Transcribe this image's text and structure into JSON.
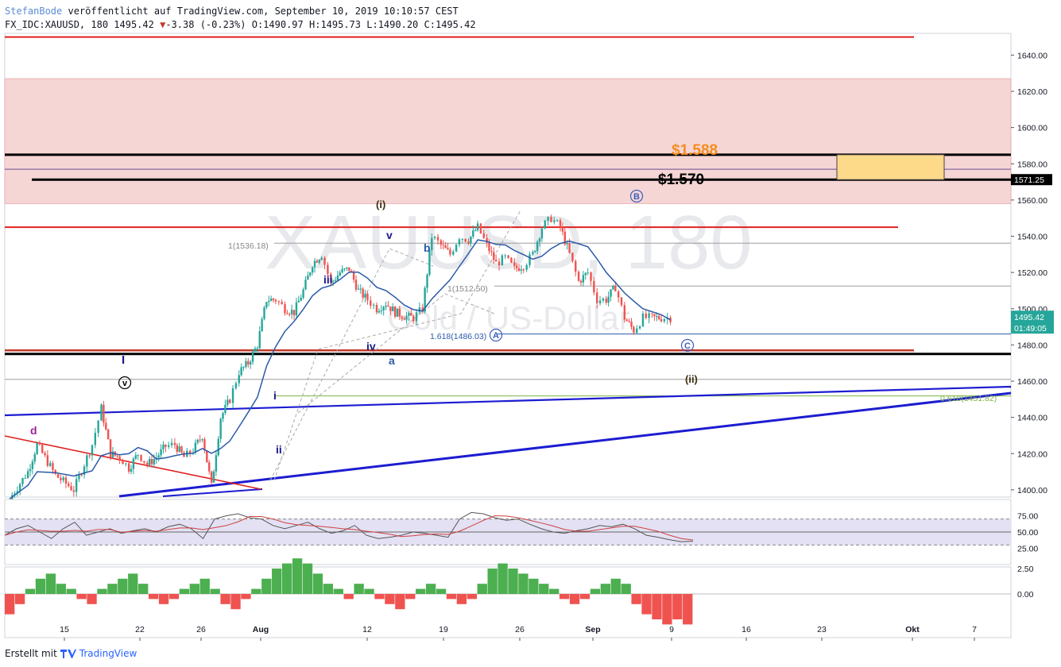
{
  "header": {
    "author": "StefanBode",
    "published": "veröffentlicht auf TradingView.com, September 10, 2019 10:10:57 CEST",
    "symbol_line": "FX_IDC:XAUUSD, 180",
    "last": "1495.42",
    "change": "-3.38",
    "change_pct": "(-0.23%)",
    "o_label": "O:",
    "o": "1490.97",
    "h_label": "H:",
    "h": "1495.73",
    "l_label": "L:",
    "l": "1490.20",
    "c_label": "C:",
    "c": "1495.42"
  },
  "footer": {
    "created": "Erstellt mit",
    "brand": "TradingView"
  },
  "watermark": {
    "symbol": "XAUUSD, 180",
    "name": "Gold / US-Dollar"
  },
  "chart_data": [
    {
      "type": "candlestick",
      "title": "FX_IDC:XAUUSD, 180",
      "y_axis": {
        "ticks": [
          1400,
          1420,
          1440,
          1460,
          1480,
          1500,
          1520,
          1540,
          1560,
          1580,
          1600,
          1620,
          1640
        ],
        "range": [
          1396,
          1652
        ],
        "position": "right"
      },
      "x_axis": {
        "ticks": [
          "15",
          "22",
          "26",
          "Aug",
          "12",
          "19",
          "26",
          "Sep",
          "9",
          "16",
          "23",
          "Okt",
          "7"
        ]
      },
      "price_path": {
        "x_day_index": [
          0,
          2,
          3,
          5,
          7,
          9,
          10,
          11,
          12,
          13,
          14,
          15,
          16,
          17,
          18,
          19,
          20,
          21,
          22,
          23,
          24,
          25,
          26,
          27,
          28,
          29,
          30,
          31,
          32,
          33,
          34,
          35,
          36,
          37,
          38,
          39,
          40,
          41,
          42,
          43,
          44,
          45,
          46,
          47,
          48,
          49,
          50,
          51,
          52,
          53,
          54,
          55,
          56,
          57,
          58,
          59,
          60,
          61,
          62,
          63,
          64,
          65,
          66,
          67,
          68,
          69,
          70,
          71,
          72
        ],
        "close": [
          1395,
          1410,
          1425,
          1408,
          1400,
          1425,
          1445,
          1420,
          1418,
          1412,
          1420,
          1414,
          1418,
          1424,
          1425,
          1418,
          1422,
          1430,
          1402,
          1440,
          1450,
          1465,
          1470,
          1480,
          1505,
          1505,
          1500,
          1498,
          1510,
          1525,
          1530,
          1514,
          1520,
          1522,
          1510,
          1505,
          1500,
          1503,
          1498,
          1496,
          1495,
          1500,
          1540,
          1535,
          1530,
          1540,
          1538,
          1545,
          1535,
          1525,
          1528,
          1522,
          1524,
          1530,
          1545,
          1550,
          1545,
          1530,
          1515,
          1520,
          1505,
          1505,
          1512,
          1495,
          1488,
          1495,
          1495,
          1495,
          1495
        ]
      },
      "current_price": 1495.42,
      "current_price_label": "1495.42",
      "countdown": "01:49:05",
      "level_labels": [
        "1571.25"
      ],
      "moving_average_color": "#2b5aa8",
      "horizontal_levels": [
        {
          "price": 1650,
          "color": "#e02020"
        },
        {
          "price": 1585,
          "color": "#000000"
        },
        {
          "price": 1577,
          "color": "#6a4c93"
        },
        {
          "price": 1571.25,
          "color": "#000000"
        },
        {
          "price": 1545,
          "color": "#e02020"
        },
        {
          "price": 1536.18,
          "color": "#9e9e9e"
        },
        {
          "price": 1512.5,
          "color": "#9e9e9e"
        },
        {
          "price": 1486.03,
          "color": "#2b5aa8"
        },
        {
          "price": 1477,
          "color": "#c0392b"
        },
        {
          "price": 1475,
          "color": "#000000"
        },
        {
          "price": 1461,
          "color": "#9e9e9e"
        },
        {
          "price": 1451.82,
          "color": "#7cb342"
        }
      ],
      "zone": {
        "from": 1558,
        "to": 1627,
        "color": "#f6d5d5"
      },
      "target_box": {
        "from": 1571.25,
        "to": 1585,
        "color": "#fdd98a"
      },
      "annotations": {
        "price_1588": "$1.588",
        "price_1570": "$1.570",
        "fib_1536": "1(1536.18)",
        "fib_1512": "1(1512.50)",
        "fib_1486": "1.618(1486.03)",
        "fib_1451": "0.618(1451.82)",
        "wave_i_paren": "(i)",
        "wave_ii_paren": "(ii)",
        "wave_v_circle": "v",
        "wave_B_circle": "B",
        "wave_C_circle": "C",
        "wave_A_circle": "A",
        "wave_I": "I",
        "wave_d": "d",
        "wave_i": "i",
        "wave_ii": "ii",
        "wave_iii": "iii",
        "wave_iv": "iv",
        "wave_v": "v",
        "wave_a": "a",
        "wave_b": "b"
      },
      "colors": {
        "up": "#26a69a",
        "down": "#ef5350",
        "accent_orange": "#f58d1f"
      }
    },
    {
      "type": "line",
      "title": "RSI",
      "y_axis": {
        "ticks": [
          25,
          50,
          75
        ],
        "tick_labels": [
          "25.00",
          "50.00",
          "75.00"
        ]
      },
      "values": [
        45,
        55,
        60,
        50,
        40,
        55,
        65,
        45,
        50,
        55,
        48,
        52,
        55,
        50,
        58,
        62,
        55,
        40,
        70,
        75,
        78,
        72,
        70,
        60,
        55,
        60,
        65,
        55,
        48,
        52,
        60,
        45,
        40,
        42,
        45,
        50,
        48,
        45,
        42,
        70,
        80,
        78,
        72,
        68,
        70,
        62,
        55,
        50,
        48,
        52,
        55,
        60,
        58,
        62,
        55,
        45,
        42,
        38,
        35,
        36
      ]
    },
    {
      "type": "histogram",
      "title": "MACD",
      "y_axis": {
        "ticks": [
          0,
          2.5
        ],
        "tick_labels": [
          "0.00",
          "2.50"
        ]
      },
      "values": [
        -2,
        -1,
        0.5,
        1.5,
        2,
        1,
        0.5,
        -0.5,
        -1,
        0.5,
        1,
        1.5,
        2,
        1,
        -0.5,
        -1,
        -0.5,
        0.5,
        1,
        1.5,
        0.5,
        -1,
        -1.5,
        -0.5,
        0.5,
        1.5,
        2.5,
        3,
        3.5,
        3,
        2,
        1,
        0.5,
        -0.5,
        1,
        0.5,
        -0.5,
        -1,
        -1.5,
        -0.5,
        0.5,
        1,
        0.5,
        -0.5,
        -1,
        -0.5,
        1,
        2.5,
        3,
        2.5,
        2,
        1.5,
        1,
        0.5,
        -0.5,
        -1,
        -0.5,
        0.5,
        1,
        1.5,
        1,
        -1,
        -2,
        -2.5,
        -3,
        -2.5,
        -3
      ]
    }
  ]
}
